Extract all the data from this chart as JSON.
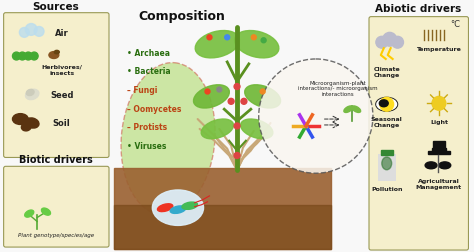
{
  "bg_color": "#f8f8f8",
  "panel_bg": "#f5efcc",
  "panel_edge": "#999955",
  "title_sources": "Sources",
  "title_biotic": "Biotic drivers",
  "title_composition": "Composition",
  "composition_items": [
    "Archaea",
    "Bacteria",
    "Fungi",
    "Oomycetes",
    "Protists",
    "Viruses"
  ],
  "composition_bullets": [
    "•",
    "•",
    "–",
    "–",
    "–",
    "•"
  ],
  "composition_colors": [
    "#2a6e10",
    "#2a6e10",
    "#bb4415",
    "#bb4415",
    "#bb4415",
    "#2a6e10"
  ],
  "interaction_text": "Microorganism-plant\ninteractions/- microorganism\ninteractions",
  "title_abiotic": "Abiotic drivers",
  "biotic_text": "Plant genotype/species/age",
  "leaf_green": "#78c040",
  "leaf_dark": "#4a8a18",
  "stem_green": "#5a9020",
  "soil_dark": "#7a4a1a",
  "soil_mid": "#9a6030",
  "root_color": "#c8a878",
  "panel_bg_abiotic": "#f5efcc"
}
